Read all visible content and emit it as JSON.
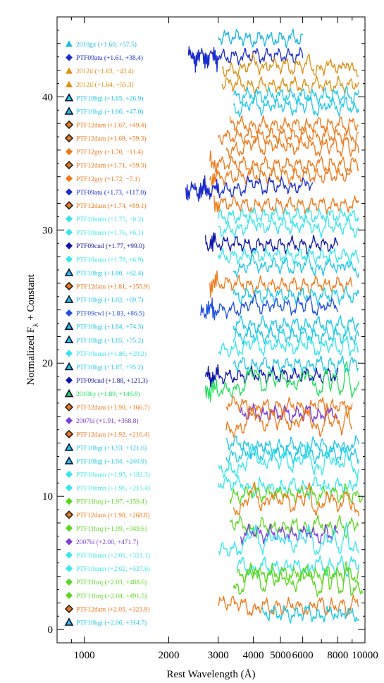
{
  "chart_data": {
    "type": "line",
    "title": "",
    "xlabel": "Rest Wavelength (Å)",
    "ylabel": "Normalized F_λ + Constant",
    "ylabel_main": "Normalized F",
    "ylabel_sub": "λ",
    "ylabel_rest": " + Constant",
    "xscale": "log",
    "xlim": [
      800,
      10000
    ],
    "ylim": [
      -1,
      46
    ],
    "x_ticks": [
      {
        "value": 1000,
        "label": "1000",
        "major": true
      },
      {
        "value": 2000,
        "label": "2000",
        "major": true
      },
      {
        "value": 3000,
        "label": "3000",
        "major": true
      },
      {
        "value": 4000,
        "label": "4000",
        "major": true
      },
      {
        "value": 5000,
        "label": "5000",
        "major": true
      },
      {
        "value": 6000,
        "label": "6000",
        "major": true
      },
      {
        "value": 8000,
        "label": "8000",
        "major": true
      },
      {
        "value": 10000,
        "label": "10000",
        "major": true
      }
    ],
    "y_ticks": [
      {
        "value": 0,
        "label": "0"
      },
      {
        "value": 10,
        "label": "10"
      },
      {
        "value": 20,
        "label": "20"
      },
      {
        "value": 30,
        "label": "30"
      },
      {
        "value": 40,
        "label": "40"
      }
    ],
    "legend_position": "left",
    "colors": {
      "PTF10hgi": "#1ec8e8",
      "PTF10nmn": "#35e6f0",
      "PTF09atu": "#1a2ccc",
      "PTF09cnd": "#0c12a8",
      "PTF09cwl": "#1e50e0",
      "2012il": "#dd9010",
      "PTF12dam": "#f07818",
      "PTF12gty": "#f07818",
      "2010gx": "#1eb8e0",
      "2010hy": "#20e05a",
      "2007bi": "#7a3edc",
      "PTF11hrq": "#5ad820"
    },
    "series": [
      {
        "name": "2010gx (+1.60, +57.5)",
        "object": "2010gx",
        "marker": "triangle",
        "color": "#1eb8e0",
        "offset": 44.5,
        "x_range": [
          3000,
          6000
        ]
      },
      {
        "name": "PTF09atu (+1.61, +38.4)",
        "object": "PTF09atu",
        "marker": "diamond",
        "color": "#1a2ccc",
        "offset": 43.0,
        "x_range": [
          2350,
          6000
        ]
      },
      {
        "name": "2012il (+1.63, +43.4)",
        "object": "2012il",
        "marker": "triangle",
        "color": "#dd9010",
        "offset": 42.0,
        "x_range": [
          3100,
          9500
        ]
      },
      {
        "name": "2012il (+1.64, +55.3)",
        "object": "2012il",
        "marker": "triangle",
        "color": "#dd9010",
        "offset": 41.0,
        "x_range": [
          3100,
          9500
        ]
      },
      {
        "name": "PTF10hgi (+1.65, +26.9)",
        "object": "PTF10hgi",
        "marker": "triangle-outlined",
        "color": "#1ec8e8",
        "offset": 40.0,
        "x_range": [
          3400,
          9500
        ]
      },
      {
        "name": "PTF10hgi (+1.66, +47.0)",
        "object": "PTF10hgi",
        "marker": "triangle-outlined",
        "color": "#1ec8e8",
        "offset": 39.0,
        "x_range": [
          3400,
          9500
        ]
      },
      {
        "name": "PTF12dam (+1.67, +49.4)",
        "object": "PTF12dam",
        "marker": "diamond-outlined",
        "color": "#f07818",
        "offset": 38.0,
        "x_range": [
          3300,
          9500
        ]
      },
      {
        "name": "PTF12dam (+1.69, +59.3)",
        "object": "PTF12dam",
        "marker": "diamond-outlined",
        "color": "#f07818",
        "offset": 37.0,
        "x_range": [
          3000,
          9500
        ]
      },
      {
        "name": "PTF12gty (+1.70, −11.4)",
        "object": "PTF12gty",
        "marker": "diamond",
        "color": "#f07818",
        "offset": 36.0,
        "x_range": [
          3200,
          9500
        ]
      },
      {
        "name": "PTF12dam (+1.71, +59.3)",
        "object": "PTF12dam",
        "marker": "diamond-outlined",
        "color": "#f07818",
        "offset": 35.0,
        "x_range": [
          2800,
          9500
        ]
      },
      {
        "name": "PTF12gty (+1.72, −7.1)",
        "object": "PTF12gty",
        "marker": "diamond",
        "color": "#f07818",
        "offset": 34.0,
        "x_range": [
          2800,
          9000
        ]
      },
      {
        "name": "PTF09atu (+1.73, +117.0)",
        "object": "PTF09atu",
        "marker": "diamond",
        "color": "#1a2ccc",
        "offset": 33.0,
        "x_range": [
          2300,
          6500
        ]
      },
      {
        "name": "PTF12dam (+1.74, +89.1)",
        "object": "PTF12dam",
        "marker": "diamond-outlined",
        "color": "#f07818",
        "offset": 32.0,
        "x_range": [
          2900,
          9500
        ]
      },
      {
        "name": "PTF10nmn (+1.75, −0.2)",
        "object": "PTF10nmn",
        "marker": "diamond",
        "color": "#35e6f0",
        "offset": 31.0,
        "x_range": [
          3000,
          9500
        ]
      },
      {
        "name": "PTF10nmn (+1.76, +6.1)",
        "object": "PTF10nmn",
        "marker": "diamond",
        "color": "#35e6f0",
        "offset": 30.0,
        "x_range": [
          3000,
          9500
        ]
      },
      {
        "name": "PTF09cnd (+1.77, +99.0)",
        "object": "PTF09cnd",
        "marker": "diamond",
        "color": "#0c12a8",
        "offset": 29.0,
        "x_range": [
          2700,
          8000
        ]
      },
      {
        "name": "PTF10nmn (+1.78, +6.9)",
        "object": "PTF10nmn",
        "marker": "diamond",
        "color": "#35e6f0",
        "offset": 28.0,
        "x_range": [
          3000,
          9500
        ]
      },
      {
        "name": "PTF10hgi (+1.80, +62.4)",
        "object": "PTF10hgi",
        "marker": "triangle-outlined",
        "color": "#1ec8e8",
        "offset": 27.0,
        "x_range": [
          3400,
          9500
        ]
      },
      {
        "name": "PTF12dam (+1.81, +155.9)",
        "object": "PTF12dam",
        "marker": "diamond-outlined",
        "color": "#f07818",
        "offset": 26.0,
        "x_range": [
          2800,
          9000
        ]
      },
      {
        "name": "PTF10hgi (+1.82, +69.7)",
        "object": "PTF10hgi",
        "marker": "triangle-outlined",
        "color": "#1ec8e8",
        "offset": 25.0,
        "x_range": [
          3400,
          9500
        ]
      },
      {
        "name": "PTF09cwl (+1.83, +86.5)",
        "object": "PTF09cwl",
        "marker": "diamond",
        "color": "#1e50e0",
        "offset": 24.0,
        "x_range": [
          2600,
          8000
        ]
      },
      {
        "name": "PTF10hgi (+1.84, +74.3)",
        "object": "PTF10hgi",
        "marker": "triangle-outlined",
        "color": "#1ec8e8",
        "offset": 23.0,
        "x_range": [
          3400,
          9500
        ]
      },
      {
        "name": "PTF10hgi (+1.85, +75.2)",
        "object": "PTF10hgi",
        "marker": "triangle-outlined",
        "color": "#1ec8e8",
        "offset": 22.0,
        "x_range": [
          3400,
          9500
        ]
      },
      {
        "name": "PTF10nmn (+1.86, +29.2)",
        "object": "PTF10nmn",
        "marker": "diamond",
        "color": "#35e6f0",
        "offset": 21.0,
        "x_range": [
          3000,
          9500
        ]
      },
      {
        "name": "PTF10hgi (+1.87, +95.2)",
        "object": "PTF10hgi",
        "marker": "triangle-outlined",
        "color": "#1ec8e8",
        "offset": 20.0,
        "x_range": [
          3400,
          9500
        ]
      },
      {
        "name": "PTF09cnd (+1.88, +121.3)",
        "object": "PTF09cnd",
        "marker": "diamond",
        "color": "#0c12a8",
        "offset": 19.0,
        "x_range": [
          2700,
          8000
        ]
      },
      {
        "name": "2010hy (+1.89, +146.8)",
        "object": "2010hy",
        "marker": "triangle-outlined",
        "color": "#20e05a",
        "offset": 18.0,
        "x_range": [
          2700,
          9500
        ]
      },
      {
        "name": "PTF12dam (+1.90, +166.7)",
        "object": "PTF12dam",
        "marker": "diamond-outlined",
        "color": "#f07818",
        "offset": 17.0,
        "x_range": [
          3200,
          9000
        ]
      },
      {
        "name": "2007bi (+1.91, +368.8)",
        "object": "2007bi",
        "marker": "diamond",
        "color": "#7a3edc",
        "offset": 16.0,
        "x_range": [
          3600,
          8000
        ]
      },
      {
        "name": "PTF12dam (+1.92, +216.4)",
        "object": "PTF12dam",
        "marker": "diamond-outlined",
        "color": "#f07818",
        "offset": 15.0,
        "x_range": [
          3200,
          9000
        ]
      },
      {
        "name": "PTF10hgi (+1.93, +121.6)",
        "object": "PTF10hgi",
        "marker": "triangle-outlined",
        "color": "#1ec8e8",
        "offset": 14.0,
        "x_range": [
          3200,
          9500
        ]
      },
      {
        "name": "PTF10hgi (+1.94, +240.9)",
        "object": "PTF10hgi",
        "marker": "triangle-outlined",
        "color": "#1ec8e8",
        "offset": 13.0,
        "x_range": [
          3200,
          9500
        ]
      },
      {
        "name": "PTF10nmn (+1.95, +182.3)",
        "object": "PTF10nmn",
        "marker": "diamond",
        "color": "#35e6f0",
        "offset": 12.0,
        "x_range": [
          3000,
          9500
        ]
      },
      {
        "name": "PTF10nmn (+1.96, +213.4)",
        "object": "PTF10nmn",
        "marker": "diamond",
        "color": "#35e6f0",
        "offset": 11.0,
        "x_range": [
          3000,
          9500
        ]
      },
      {
        "name": "PTF11hrq (+1.97, +159.4)",
        "object": "PTF11hrq",
        "marker": "diamond",
        "color": "#5ad820",
        "offset": 10.0,
        "x_range": [
          3300,
          9800
        ]
      },
      {
        "name": "PTF12dam (+1.98, +268.8)",
        "object": "PTF12dam",
        "marker": "diamond-outlined",
        "color": "#f07818",
        "offset": 9.0,
        "x_range": [
          3400,
          9500
        ]
      },
      {
        "name": "PTF11hrq (+1.99, +349.6)",
        "object": "PTF11hrq",
        "marker": "diamond",
        "color": "#5ad820",
        "offset": 8.0,
        "x_range": [
          3300,
          9500
        ]
      },
      {
        "name": "2007bi (+2.00, +471.7)",
        "object": "2007bi",
        "marker": "diamond",
        "color": "#7a3edc",
        "offset": 7.0,
        "x_range": [
          3600,
          8000
        ]
      },
      {
        "name": "PTF10nmn (+2.01, +321.1)",
        "object": "PTF10nmn",
        "marker": "diamond",
        "color": "#35e6f0",
        "offset": 6.0,
        "x_range": [
          3000,
          9500
        ]
      },
      {
        "name": "PTF10nmn (+2.02, +527.6)",
        "object": "PTF10nmn",
        "marker": "diamond",
        "color": "#35e6f0",
        "offset": 5.0,
        "x_range": [
          3500,
          9500
        ]
      },
      {
        "name": "PTF11hrq (+2.03, +488.6)",
        "object": "PTF11hrq",
        "marker": "diamond",
        "color": "#5ad820",
        "offset": 4.0,
        "x_range": [
          3500,
          9500
        ]
      },
      {
        "name": "PTF11hrq (+2.04, +491.5)",
        "object": "PTF11hrq",
        "marker": "diamond",
        "color": "#5ad820",
        "offset": 3.0,
        "x_range": [
          3400,
          9800
        ]
      },
      {
        "name": "PTF12dam (+2.05, +323.9)",
        "object": "PTF12dam",
        "marker": "diamond-outlined",
        "color": "#f07818",
        "offset": 2.0,
        "x_range": [
          3000,
          9500
        ]
      },
      {
        "name": "PTF10hgi (+2.06, +314.7)",
        "object": "PTF10hgi",
        "marker": "triangle-outlined",
        "color": "#1ec8e8",
        "offset": 1.0,
        "x_range": [
          4300,
          9500
        ]
      }
    ]
  }
}
